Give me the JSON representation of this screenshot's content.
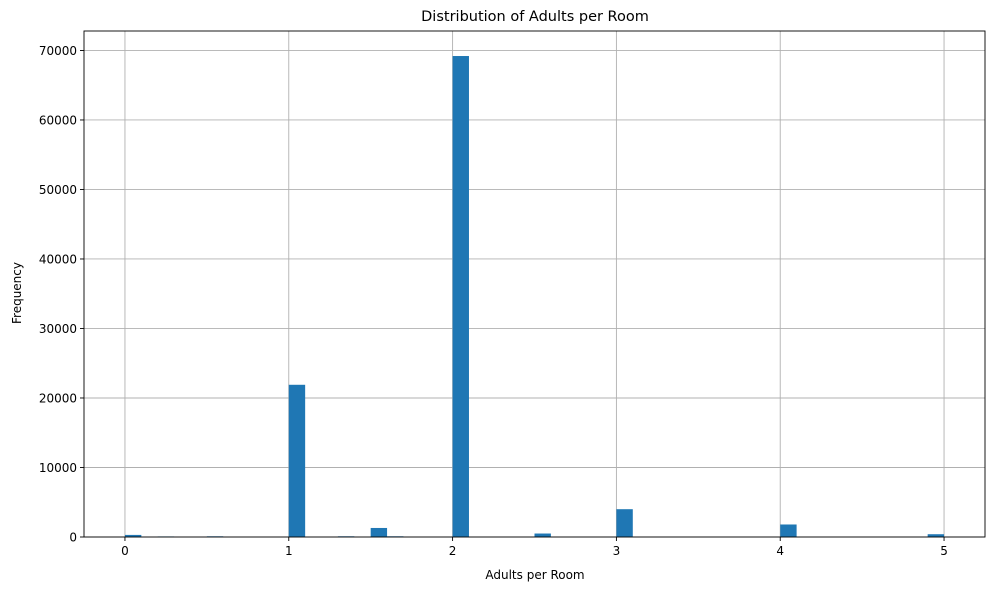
{
  "chart_data": {
    "type": "bar",
    "title": "Distribution of Adults per Room",
    "xlabel": "Adults per Room",
    "ylabel": "Frequency",
    "xlim": [
      -0.25,
      5.25
    ],
    "ylim": [
      0,
      72800
    ],
    "xticks": [
      0,
      1,
      2,
      3,
      4,
      5
    ],
    "yticks": [
      0,
      10000,
      20000,
      30000,
      40000,
      50000,
      60000,
      70000
    ],
    "grid": true,
    "bar_color": "#1f77b4",
    "bin_width": 0.1,
    "bins": [
      {
        "x": 0.0,
        "value": 300
      },
      {
        "x": 0.2,
        "value": 80
      },
      {
        "x": 0.5,
        "value": 100
      },
      {
        "x": 1.0,
        "value": 21900
      },
      {
        "x": 1.3,
        "value": 100
      },
      {
        "x": 1.5,
        "value": 1300
      },
      {
        "x": 1.6,
        "value": 100
      },
      {
        "x": 2.0,
        "value": 69200
      },
      {
        "x": 2.5,
        "value": 500
      },
      {
        "x": 3.0,
        "value": 4000
      },
      {
        "x": 4.0,
        "value": 1800
      },
      {
        "x": 4.9,
        "value": 400
      }
    ]
  }
}
